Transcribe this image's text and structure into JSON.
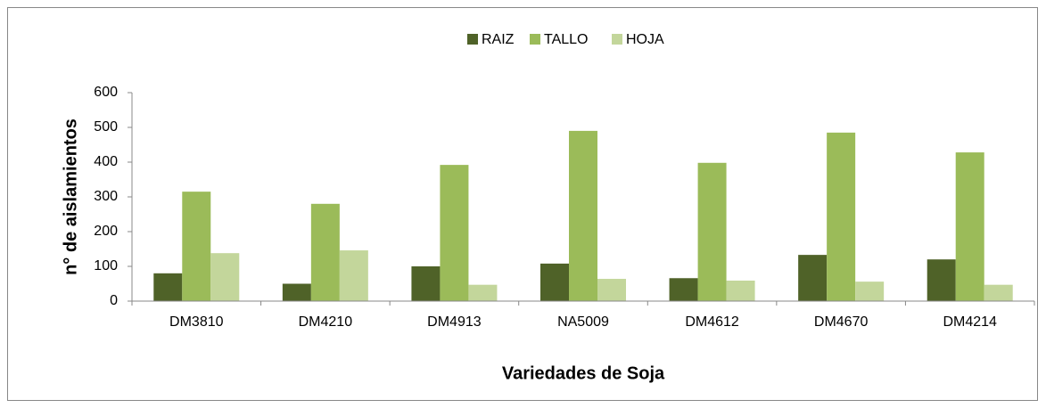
{
  "chart_data": {
    "type": "bar",
    "x_label": "Variedades de Soja",
    "y_label": "n° de aislamientos",
    "categories": [
      "DM3810",
      "DM4210",
      "DM4913",
      "NA5009",
      "DM4612",
      "DM4670",
      "DM4214"
    ],
    "series": [
      {
        "name": "RAIZ",
        "color": "#4f6228",
        "values": [
          80,
          50,
          100,
          108,
          66,
          133,
          120
        ]
      },
      {
        "name": "TALLO",
        "color": "#9bbb59",
        "values": [
          315,
          280,
          392,
          490,
          398,
          485,
          428
        ]
      },
      {
        "name": "HOJA",
        "color": "#c3d69b",
        "values": [
          138,
          146,
          47,
          64,
          59,
          56,
          47
        ]
      }
    ],
    "ylim": [
      0,
      600
    ],
    "yticks": [
      0,
      100,
      200,
      300,
      400,
      500,
      600
    ],
    "legend": "top",
    "grid": false
  }
}
